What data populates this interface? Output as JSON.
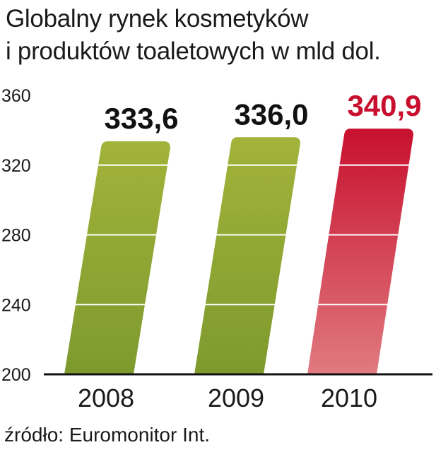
{
  "title_lines": [
    "Globalny rynek kosmetyków",
    "i produktów toaletowych w mld dol."
  ],
  "source": "źródło: Euromonitor Int.",
  "colors": {
    "green_top": "#a3b33a",
    "green_bottom": "#7d9a2e",
    "red_top": "#c8102e",
    "red_bottom": "#e07a80",
    "highlight_label": "#c8102e",
    "label": "#111111",
    "grid": "#ffffff",
    "axis": "#111111"
  },
  "chart_data": {
    "type": "bar",
    "categories": [
      "2008",
      "2009",
      "2010"
    ],
    "values": [
      333.6,
      336.0,
      340.9
    ],
    "value_labels": [
      "333,6",
      "336,0",
      "340,9"
    ],
    "highlight_index": 2,
    "ylim": [
      200,
      360
    ],
    "yticks": [
      200,
      240,
      280,
      320,
      360
    ],
    "grid": true,
    "title": "Globalny rynek kosmetyków i produktów toaletowych w mld dol.",
    "xlabel": "",
    "ylabel": ""
  }
}
